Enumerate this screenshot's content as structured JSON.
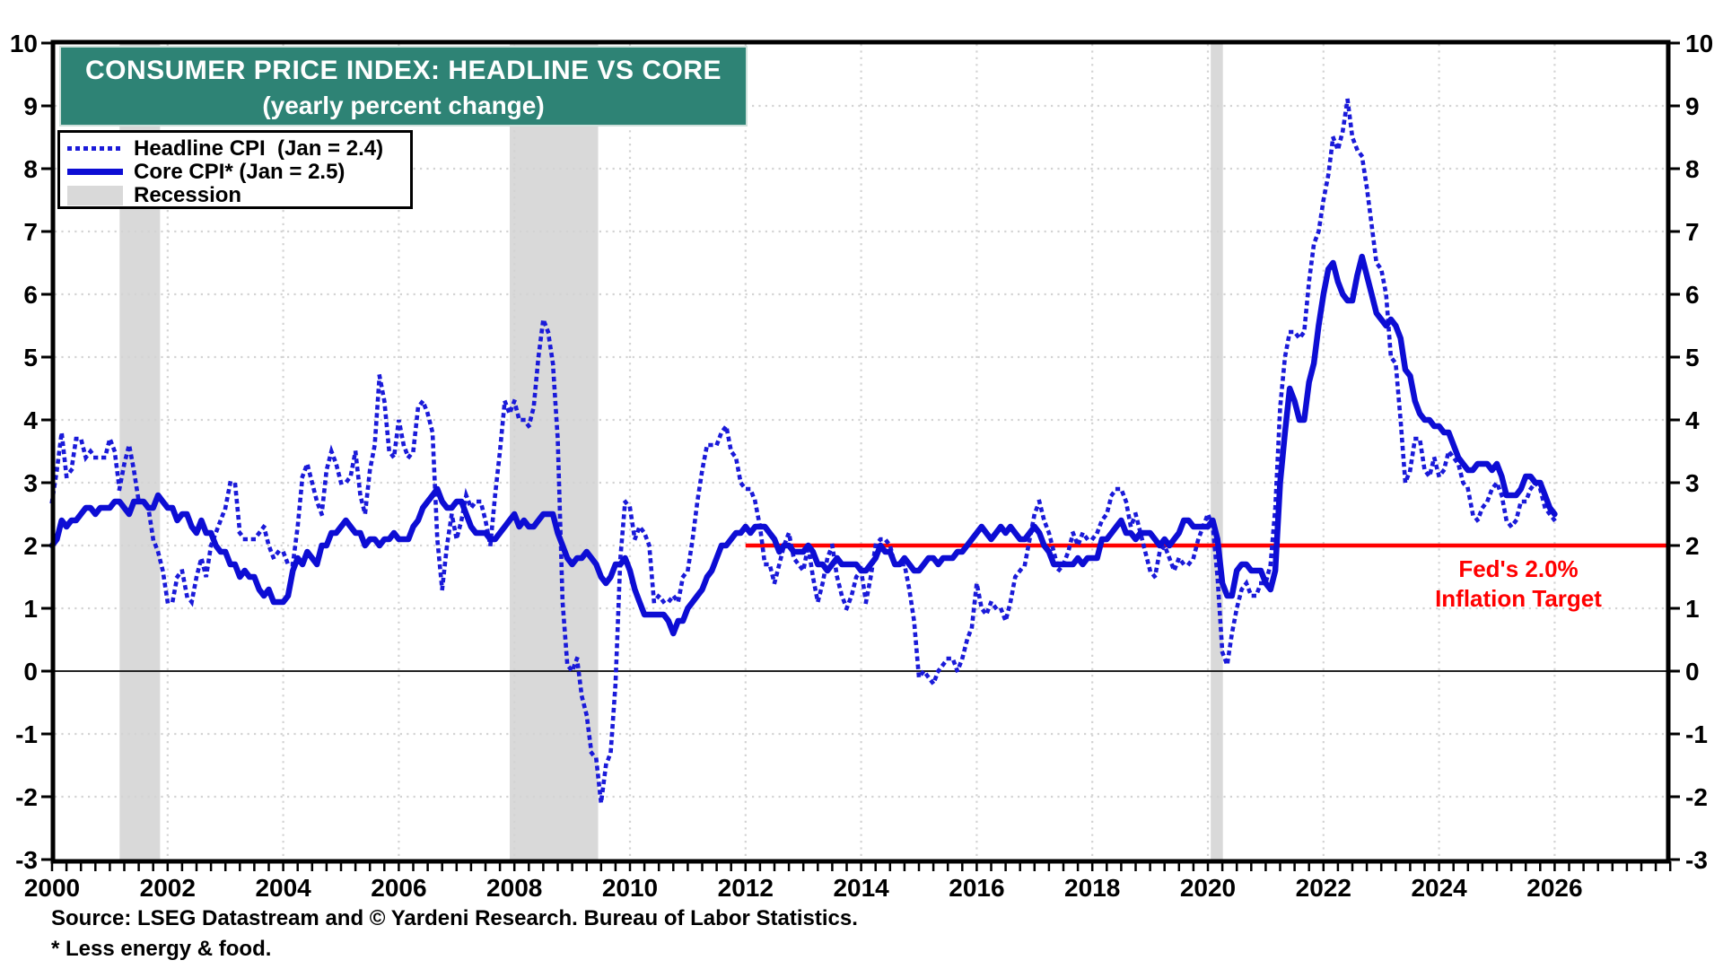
{
  "header": {
    "title": "CONSUMER PRICE INDEX: HEADLINE VS CORE",
    "subtitle": "(yearly percent change)"
  },
  "legend": {
    "items": [
      {
        "swatch": "dotted-blue-line",
        "label": "Headline CPI  (Jan = 2.4)"
      },
      {
        "swatch": "solid-blue-line",
        "label": "Core CPI* (Jan = 2.5)"
      },
      {
        "swatch": "gray-box",
        "label": "Recession"
      }
    ]
  },
  "annotations": {
    "fed_line1": "Fed's 2.0%",
    "fed_line2": "Inflation Target"
  },
  "footer": {
    "source": "Source: LSEG Datastream and © Yardeni Research. Bureau of Labor Statistics.",
    "footnote": "* Less energy & food."
  },
  "colors": {
    "title_box": "#2e8375",
    "headline_line": "#1a1ad9",
    "core_line": "#0d0dd4",
    "recession_band": "#d9d9d9",
    "target_red": "#ff0000",
    "gridline": "#d3d3d3",
    "axis": "#000000"
  },
  "chart_data": {
    "type": "line",
    "title": "CONSUMER PRICE INDEX: HEADLINE VS CORE",
    "subtitle": "(yearly percent change)",
    "xlabel": "",
    "ylabel": "yearly percent change",
    "x_axis": {
      "min": 2000,
      "max": 2028,
      "tick_labels": [
        2000,
        2002,
        2004,
        2006,
        2008,
        2010,
        2012,
        2014,
        2016,
        2018,
        2020,
        2022,
        2024,
        2026
      ],
      "minor_tick_interval_years": 0.25
    },
    "y_axis": {
      "min": -3,
      "max": 10,
      "ticks": [
        10,
        9,
        8,
        7,
        6,
        5,
        4,
        3,
        2,
        1,
        0,
        -1,
        -2,
        -3
      ],
      "gridlines_at": [
        9,
        8,
        7,
        6,
        5,
        4,
        3,
        2,
        1,
        -1,
        -2
      ],
      "zero_line": 0
    },
    "legend_position": "top-left",
    "start_year": 2000,
    "step_months": 1,
    "series": [
      {
        "name": "Headline CPI  (Jan = 2.4)",
        "style": "dotted",
        "color": "#1a1ad9",
        "values": [
          2.7,
          3.2,
          3.8,
          3.1,
          3.2,
          3.7,
          3.7,
          3.4,
          3.5,
          3.4,
          3.4,
          3.4,
          3.7,
          3.5,
          2.9,
          3.3,
          3.6,
          3.2,
          2.7,
          2.7,
          2.6,
          2.1,
          1.9,
          1.6,
          1.1,
          1.1,
          1.5,
          1.6,
          1.2,
          1.1,
          1.5,
          1.8,
          1.5,
          2.0,
          2.2,
          2.4,
          2.6,
          3.0,
          3.0,
          2.2,
          2.1,
          2.1,
          2.1,
          2.2,
          2.3,
          2.0,
          1.8,
          1.9,
          1.9,
          1.7,
          1.7,
          2.3,
          3.1,
          3.3,
          3.0,
          2.7,
          2.5,
          3.2,
          3.5,
          3.3,
          3.0,
          3.0,
          3.1,
          3.5,
          2.8,
          2.5,
          3.2,
          3.6,
          4.7,
          4.3,
          3.5,
          3.4,
          4.0,
          3.6,
          3.4,
          3.5,
          4.2,
          4.3,
          4.1,
          3.8,
          2.1,
          1.3,
          2.0,
          2.5,
          2.1,
          2.4,
          2.8,
          2.6,
          2.7,
          2.7,
          2.4,
          2.0,
          2.8,
          3.5,
          4.3,
          4.1,
          4.3,
          4.0,
          4.0,
          3.9,
          4.2,
          5.0,
          5.6,
          5.4,
          4.9,
          3.7,
          1.1,
          0.1,
          0.0,
          0.2,
          -0.4,
          -0.7,
          -1.3,
          -1.4,
          -2.1,
          -1.5,
          -1.3,
          -0.2,
          1.8,
          2.7,
          2.6,
          2.1,
          2.3,
          2.2,
          2.0,
          1.1,
          1.2,
          1.1,
          1.1,
          1.2,
          1.1,
          1.5,
          1.6,
          2.1,
          2.7,
          3.2,
          3.6,
          3.6,
          3.6,
          3.8,
          3.9,
          3.5,
          3.4,
          3.0,
          2.9,
          2.9,
          2.7,
          2.3,
          1.7,
          1.7,
          1.4,
          1.7,
          2.0,
          2.2,
          1.8,
          1.7,
          1.6,
          2.0,
          1.5,
          1.1,
          1.4,
          1.8,
          2.0,
          1.5,
          1.2,
          1.0,
          1.2,
          1.5,
          1.6,
          1.1,
          1.5,
          2.0,
          2.1,
          2.1,
          2.0,
          1.7,
          1.7,
          1.7,
          1.3,
          0.8,
          -0.1,
          0.0,
          -0.1,
          -0.2,
          0.0,
          0.1,
          0.2,
          0.2,
          0.0,
          0.2,
          0.5,
          0.7,
          1.4,
          1.0,
          0.9,
          1.1,
          1.0,
          1.0,
          0.8,
          1.1,
          1.5,
          1.6,
          1.7,
          2.1,
          2.5,
          2.7,
          2.4,
          2.2,
          1.9,
          1.6,
          1.7,
          1.9,
          2.2,
          2.0,
          2.2,
          2.1,
          2.1,
          2.2,
          2.4,
          2.5,
          2.8,
          2.9,
          2.9,
          2.7,
          2.3,
          2.5,
          2.2,
          1.9,
          1.6,
          1.5,
          1.9,
          2.0,
          1.8,
          1.6,
          1.8,
          1.7,
          1.7,
          1.8,
          2.1,
          2.3,
          2.5,
          2.3,
          1.5,
          0.3,
          0.1,
          0.6,
          1.0,
          1.3,
          1.4,
          1.2,
          1.2,
          1.4,
          1.4,
          1.7,
          2.6,
          4.2,
          5.0,
          5.4,
          5.4,
          5.3,
          5.4,
          6.2,
          6.8,
          7.0,
          7.5,
          7.9,
          8.5,
          8.3,
          8.6,
          9.1,
          8.5,
          8.3,
          8.2,
          7.7,
          7.1,
          6.5,
          6.4,
          6.0,
          5.0,
          4.9,
          4.0,
          3.0,
          3.2,
          3.7,
          3.7,
          3.2,
          3.1,
          3.4,
          3.1,
          3.2,
          3.5,
          3.4,
          3.3,
          3.0,
          2.9,
          2.5,
          2.4,
          2.6,
          2.7,
          2.9,
          3.0,
          2.8,
          2.4,
          2.3,
          2.4,
          2.7,
          2.7,
          2.9,
          3.0,
          2.9,
          2.6,
          2.5,
          2.4
        ]
      },
      {
        "name": "Core CPI* (Jan = 2.5)",
        "style": "solid",
        "color": "#0d0dd4",
        "values": [
          2.0,
          2.1,
          2.4,
          2.3,
          2.4,
          2.4,
          2.5,
          2.6,
          2.6,
          2.5,
          2.6,
          2.6,
          2.6,
          2.7,
          2.7,
          2.6,
          2.5,
          2.7,
          2.7,
          2.7,
          2.6,
          2.6,
          2.8,
          2.7,
          2.6,
          2.6,
          2.4,
          2.5,
          2.5,
          2.3,
          2.2,
          2.4,
          2.2,
          2.2,
          2.0,
          1.9,
          1.9,
          1.7,
          1.7,
          1.5,
          1.6,
          1.5,
          1.5,
          1.3,
          1.2,
          1.3,
          1.1,
          1.1,
          1.1,
          1.2,
          1.6,
          1.8,
          1.7,
          1.9,
          1.8,
          1.7,
          2.0,
          2.0,
          2.2,
          2.2,
          2.3,
          2.4,
          2.3,
          2.2,
          2.2,
          2.0,
          2.1,
          2.1,
          2.0,
          2.1,
          2.1,
          2.2,
          2.1,
          2.1,
          2.1,
          2.3,
          2.4,
          2.6,
          2.7,
          2.8,
          2.9,
          2.7,
          2.6,
          2.6,
          2.7,
          2.7,
          2.5,
          2.3,
          2.2,
          2.2,
          2.2,
          2.1,
          2.1,
          2.2,
          2.3,
          2.4,
          2.5,
          2.3,
          2.4,
          2.3,
          2.3,
          2.4,
          2.5,
          2.5,
          2.5,
          2.2,
          2.0,
          1.8,
          1.7,
          1.8,
          1.8,
          1.9,
          1.8,
          1.7,
          1.5,
          1.4,
          1.5,
          1.7,
          1.7,
          1.8,
          1.6,
          1.3,
          1.1,
          0.9,
          0.9,
          0.9,
          0.9,
          0.9,
          0.8,
          0.6,
          0.8,
          0.8,
          1.0,
          1.1,
          1.2,
          1.3,
          1.5,
          1.6,
          1.8,
          2.0,
          2.0,
          2.1,
          2.2,
          2.2,
          2.3,
          2.2,
          2.3,
          2.3,
          2.3,
          2.2,
          2.1,
          1.9,
          2.0,
          2.0,
          1.9,
          1.9,
          1.9,
          2.0,
          1.9,
          1.7,
          1.7,
          1.6,
          1.7,
          1.8,
          1.7,
          1.7,
          1.7,
          1.7,
          1.6,
          1.6,
          1.7,
          1.8,
          2.0,
          1.9,
          1.9,
          1.7,
          1.7,
          1.8,
          1.7,
          1.6,
          1.6,
          1.7,
          1.8,
          1.8,
          1.7,
          1.8,
          1.8,
          1.8,
          1.9,
          1.9,
          2.0,
          2.1,
          2.2,
          2.3,
          2.2,
          2.1,
          2.2,
          2.3,
          2.2,
          2.3,
          2.2,
          2.1,
          2.1,
          2.2,
          2.3,
          2.2,
          2.0,
          1.9,
          1.7,
          1.7,
          1.7,
          1.7,
          1.7,
          1.8,
          1.7,
          1.8,
          1.8,
          1.8,
          2.1,
          2.1,
          2.2,
          2.3,
          2.4,
          2.2,
          2.2,
          2.1,
          2.2,
          2.2,
          2.2,
          2.1,
          2.0,
          2.1,
          2.0,
          2.1,
          2.2,
          2.4,
          2.4,
          2.3,
          2.3,
          2.3,
          2.3,
          2.4,
          2.1,
          1.4,
          1.2,
          1.2,
          1.6,
          1.7,
          1.7,
          1.6,
          1.6,
          1.6,
          1.4,
          1.3,
          1.6,
          3.0,
          3.8,
          4.5,
          4.3,
          4.0,
          4.0,
          4.6,
          4.9,
          5.5,
          6.0,
          6.4,
          6.5,
          6.2,
          6.0,
          5.9,
          5.9,
          6.3,
          6.6,
          6.3,
          6.0,
          5.7,
          5.6,
          5.5,
          5.6,
          5.5,
          5.3,
          4.8,
          4.7,
          4.3,
          4.1,
          4.0,
          4.0,
          3.9,
          3.9,
          3.8,
          3.8,
          3.6,
          3.4,
          3.3,
          3.2,
          3.2,
          3.3,
          3.3,
          3.3,
          3.2,
          3.3,
          3.1,
          2.8,
          2.8,
          2.8,
          2.9,
          3.1,
          3.1,
          3.0,
          3.0,
          2.8,
          2.6,
          2.5
        ]
      }
    ],
    "recessions": [
      [
        2001.17,
        2001.87
      ],
      [
        2007.92,
        2009.45
      ],
      [
        2020.05,
        2020.26
      ]
    ],
    "fed_target": {
      "value": 2.0,
      "start_year": 2012,
      "label": "Fed's 2.0% Inflation Target"
    }
  }
}
